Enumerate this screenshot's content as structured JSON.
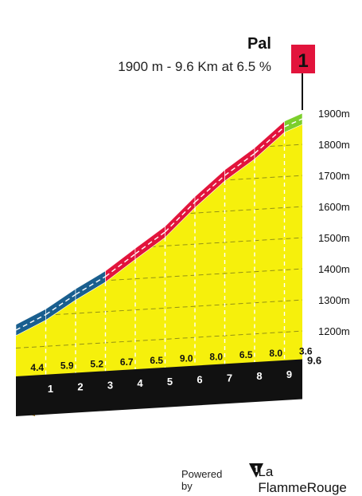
{
  "chart_data": {
    "type": "area",
    "title": "Pal",
    "subtitle": "1900 m - 9.6 Km at 6.5 %",
    "x_unit": "km",
    "y_unit": "m",
    "distance_km": [
      0,
      1,
      2,
      3,
      4,
      5,
      6,
      7,
      8,
      9,
      9.6
    ],
    "elevation_m": [
      1275.8,
      1319.8,
      1378.8,
      1430.8,
      1497.8,
      1562.8,
      1652.8,
      1732.8,
      1797.8,
      1877.8,
      1900
    ],
    "segment_gradients": [
      4.4,
      5.9,
      5.2,
      6.7,
      6.5,
      9.0,
      8.0,
      6.5,
      8.0,
      3.6
    ],
    "segment_gradient_labels": [
      "4.4",
      "5.9",
      "5.2",
      "6.7",
      "6.5",
      "9.0",
      "8.0",
      "6.5",
      "8.0",
      "3.6"
    ],
    "km_labels": [
      "1",
      "2",
      "3",
      "4",
      "5",
      "6",
      "7",
      "8",
      "9"
    ],
    "end_km_label": "9.6",
    "y_ticks": [
      1200,
      1300,
      1400,
      1500,
      1600,
      1700,
      1800,
      1900
    ],
    "y_tick_labels": [
      "1200m",
      "1300m",
      "1400m",
      "1500m",
      "1600m",
      "1700m",
      "1800m",
      "1900m"
    ],
    "ylim": [
      1150,
      1900
    ],
    "gradient_colors": {
      "low": "#7ccf2c",
      "medium": "#1a5f8f",
      "high": "#e2143c",
      "fill": "#f6f00c",
      "base_side": "#a87b16",
      "base": "#111111"
    },
    "summit_flag_label": "1",
    "summit_flag_color": "#e2143c"
  },
  "footer": {
    "powered_by": "Powered by",
    "brand": "La FlammeRouge"
  }
}
